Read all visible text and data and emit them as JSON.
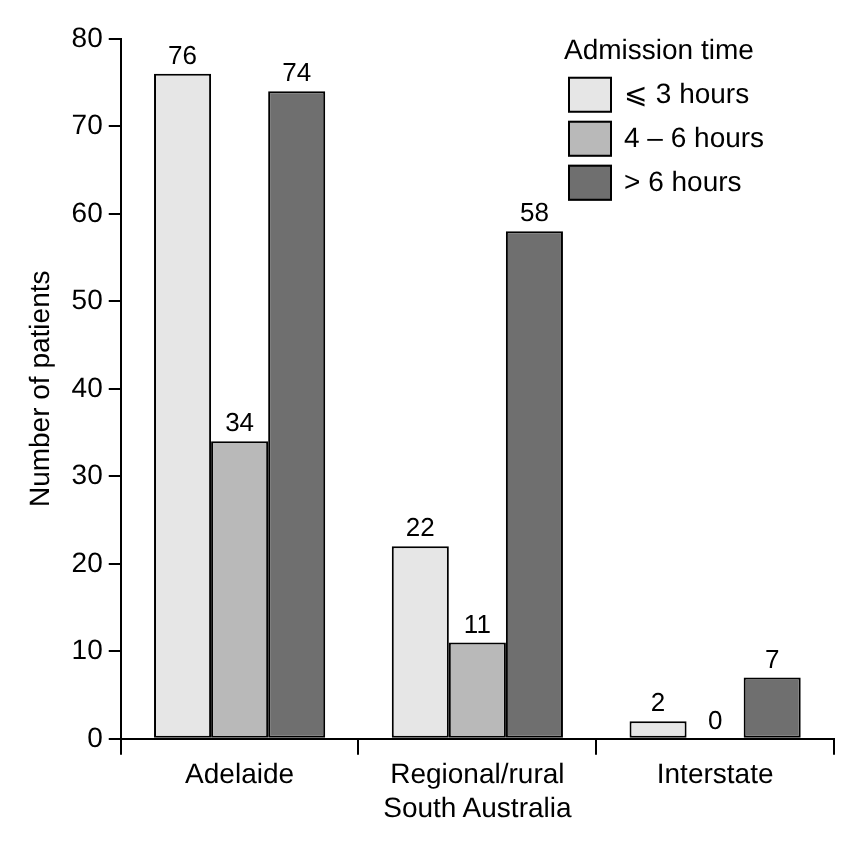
{
  "chart_data": {
    "type": "bar",
    "ylabel": "Number of patients",
    "legend_title": "Admission time",
    "categories": [
      "Adelaide",
      "Regional/rural South Australia",
      "Interstate"
    ],
    "series": [
      {
        "name": "⩽ 3 hours",
        "color": "#e6e6e6",
        "values": [
          76,
          22,
          2
        ]
      },
      {
        "name": "4 – 6 hours",
        "color": "#b9b9b9",
        "values": [
          34,
          11,
          0
        ]
      },
      {
        "name": "> 6 hours",
        "color": "#6f6f6f",
        "values": [
          74,
          58,
          7
        ]
      }
    ],
    "ylim": [
      0,
      80
    ],
    "yticks": [
      0,
      10,
      20,
      30,
      40,
      50,
      60,
      70,
      80
    ],
    "grid": false,
    "legend": "top right",
    "data_labels": true
  }
}
